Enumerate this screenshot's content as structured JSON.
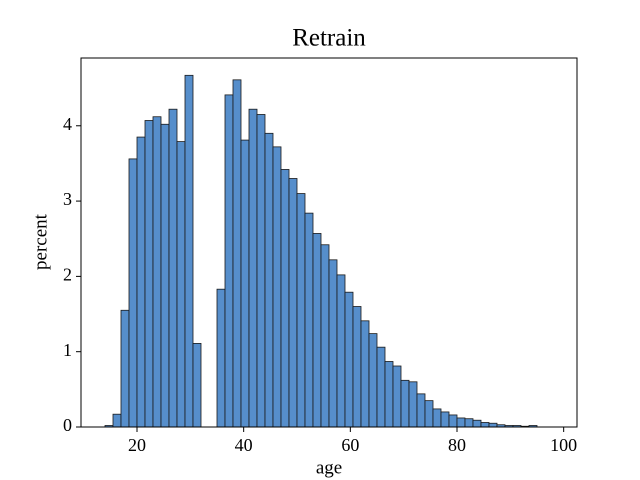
{
  "chart_data": {
    "type": "histogram",
    "title": "Retrain",
    "xlabel": "age",
    "ylabel": "percent",
    "bins": [
      14,
      15.5,
      17,
      18.5,
      20,
      21.5,
      23,
      24.5,
      26,
      27.5,
      29,
      30.5,
      32,
      33.5,
      35,
      36.5,
      38,
      39.5,
      41,
      42.5,
      44,
      45.5,
      47,
      48.5,
      50,
      51.5,
      53,
      54.5,
      56,
      57.5,
      59,
      60.5,
      62,
      63.5,
      65,
      66.5,
      68,
      69.5,
      71,
      72.5,
      74,
      75.5,
      77,
      78.5,
      80,
      81.5,
      83,
      84.5,
      86,
      87.5,
      89,
      90.5,
      92,
      93.5,
      95
    ],
    "values": [
      0.02,
      0.17,
      1.55,
      3.56,
      3.85,
      4.07,
      4.12,
      4.02,
      4.22,
      3.79,
      4.67,
      1.11,
      0,
      0,
      1.83,
      4.41,
      4.61,
      3.81,
      4.22,
      4.15,
      3.9,
      3.72,
      3.42,
      3.3,
      3.1,
      2.84,
      2.57,
      2.42,
      2.22,
      2.02,
      1.79,
      1.6,
      1.41,
      1.24,
      1.06,
      0.87,
      0.81,
      0.62,
      0.6,
      0.44,
      0.35,
      0.24,
      0.2,
      0.16,
      0.12,
      0.11,
      0.09,
      0.06,
      0.05,
      0.03,
      0.02,
      0.02,
      0.01,
      0.02
    ],
    "color": "#568ecb",
    "xlim": [
      9.5,
      102.5
    ],
    "xticks": [
      20,
      40,
      60,
      80,
      100
    ],
    "ylim": [
      0,
      4.9
    ],
    "yticks": [
      0,
      1,
      2,
      3,
      4
    ]
  }
}
